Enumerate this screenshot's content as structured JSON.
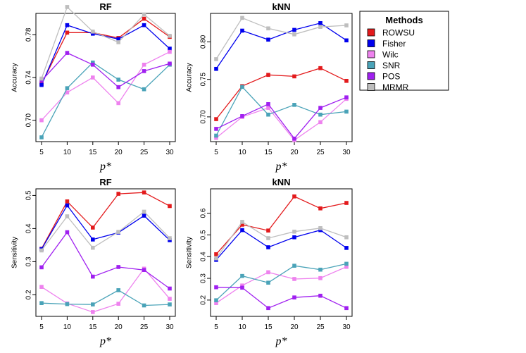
{
  "legend": {
    "title": "Methods",
    "entries": [
      {
        "name": "ROWSU",
        "color": "#e31a1c"
      },
      {
        "name": "Fisher",
        "color": "#0000ee"
      },
      {
        "name": "Wilc",
        "color": "#ee82ee"
      },
      {
        "name": "SNR",
        "color": "#4aa3b8"
      },
      {
        "name": "POS",
        "color": "#a020f0"
      },
      {
        "name": "MRMR",
        "color": "#bebebe"
      }
    ]
  },
  "chart_data": [
    {
      "type": "line",
      "title": "RF",
      "xlabel": "p*",
      "ylabel": "Accuracy",
      "x": [
        5,
        10,
        15,
        20,
        25,
        30
      ],
      "xlim": [
        5,
        30
      ],
      "ylim": [
        0.68,
        0.8
      ],
      "yticks": [
        0.7,
        0.74,
        0.78
      ],
      "ytick_labels": [
        "0.70",
        "0.74",
        "0.78"
      ],
      "series": [
        {
          "name": "ROWSU",
          "values": [
            0.734,
            0.782,
            0.782,
            0.777,
            0.795,
            0.778
          ]
        },
        {
          "name": "Fisher",
          "values": [
            0.733,
            0.789,
            0.781,
            0.776,
            0.789,
            0.767
          ]
        },
        {
          "name": "Wilc",
          "values": [
            0.7,
            0.726,
            0.74,
            0.716,
            0.752,
            0.764
          ]
        },
        {
          "name": "SNR",
          "values": [
            0.684,
            0.73,
            0.754,
            0.738,
            0.729,
            0.752
          ]
        },
        {
          "name": "POS",
          "values": [
            0.737,
            0.763,
            0.752,
            0.731,
            0.746,
            0.753
          ]
        },
        {
          "name": "MRMR",
          "values": [
            0.739,
            0.806,
            0.783,
            0.773,
            0.799,
            0.779
          ]
        }
      ]
    },
    {
      "type": "line",
      "title": "kNN",
      "xlabel": "p*",
      "ylabel": "Accuracy",
      "x": [
        5,
        10,
        15,
        20,
        25,
        30
      ],
      "xlim": [
        5,
        30
      ],
      "ylim": [
        0.667,
        0.838
      ],
      "yticks": [
        0.7,
        0.75,
        0.8
      ],
      "ytick_labels": [
        "0.70",
        "0.75",
        "0.80"
      ],
      "series": [
        {
          "name": "ROWSU",
          "values": [
            0.697,
            0.741,
            0.756,
            0.754,
            0.765,
            0.748
          ]
        },
        {
          "name": "Fisher",
          "values": [
            0.764,
            0.815,
            0.803,
            0.816,
            0.825,
            0.802
          ]
        },
        {
          "name": "Wilc",
          "values": [
            0.672,
            0.7,
            0.712,
            0.669,
            0.693,
            0.724
          ]
        },
        {
          "name": "SNR",
          "values": [
            0.675,
            0.74,
            0.703,
            0.716,
            0.703,
            0.707
          ]
        },
        {
          "name": "POS",
          "values": [
            0.684,
            0.701,
            0.717,
            0.671,
            0.712,
            0.726
          ]
        },
        {
          "name": "MRMR",
          "values": [
            0.777,
            0.832,
            0.818,
            0.81,
            0.82,
            0.822
          ]
        }
      ]
    },
    {
      "type": "line",
      "title": "RF",
      "xlabel": "p*",
      "ylabel": "Sensitivity",
      "x": [
        5,
        10,
        15,
        20,
        25,
        30
      ],
      "xlim": [
        5,
        30
      ],
      "ylim": [
        0.135,
        0.52
      ],
      "yticks": [
        0.2,
        0.3,
        0.4,
        0.5
      ],
      "ytick_labels": [
        "0.2",
        "0.3",
        "0.4",
        "0.5"
      ],
      "series": [
        {
          "name": "ROWSU",
          "values": [
            0.339,
            0.482,
            0.403,
            0.505,
            0.509,
            0.468
          ]
        },
        {
          "name": "Fisher",
          "values": [
            0.338,
            0.47,
            0.367,
            0.388,
            0.439,
            0.365
          ]
        },
        {
          "name": "Wilc",
          "values": [
            0.224,
            0.174,
            0.148,
            0.173,
            0.279,
            0.188
          ]
        },
        {
          "name": "SNR",
          "values": [
            0.175,
            0.172,
            0.171,
            0.214,
            0.168,
            0.171
          ]
        },
        {
          "name": "POS",
          "values": [
            0.283,
            0.389,
            0.255,
            0.284,
            0.275,
            0.219
          ]
        },
        {
          "name": "MRMR",
          "values": [
            0.334,
            0.437,
            0.342,
            0.39,
            0.451,
            0.371
          ]
        }
      ]
    },
    {
      "type": "line",
      "title": "kNN",
      "xlabel": "p*",
      "ylabel": "Sensitivity",
      "x": [
        5,
        10,
        15,
        20,
        25,
        30
      ],
      "xlim": [
        5,
        30
      ],
      "ylim": [
        0.125,
        0.712
      ],
      "yticks": [
        0.2,
        0.3,
        0.4,
        0.5,
        0.6
      ],
      "ytick_labels": [
        "0.2",
        "0.3",
        "0.4",
        "0.5",
        "0.6"
      ],
      "series": [
        {
          "name": "ROWSU",
          "values": [
            0.411,
            0.547,
            0.52,
            0.677,
            0.622,
            0.647
          ]
        },
        {
          "name": "Fisher",
          "values": [
            0.385,
            0.522,
            0.443,
            0.489,
            0.522,
            0.44
          ]
        },
        {
          "name": "Wilc",
          "values": [
            0.186,
            0.267,
            0.328,
            0.297,
            0.301,
            0.353
          ]
        },
        {
          "name": "SNR",
          "values": [
            0.199,
            0.311,
            0.28,
            0.358,
            0.34,
            0.367
          ]
        },
        {
          "name": "POS",
          "values": [
            0.259,
            0.257,
            0.163,
            0.212,
            0.22,
            0.163
          ]
        },
        {
          "name": "MRMR",
          "values": [
            0.392,
            0.56,
            0.485,
            0.515,
            0.531,
            0.489
          ]
        }
      ]
    }
  ]
}
